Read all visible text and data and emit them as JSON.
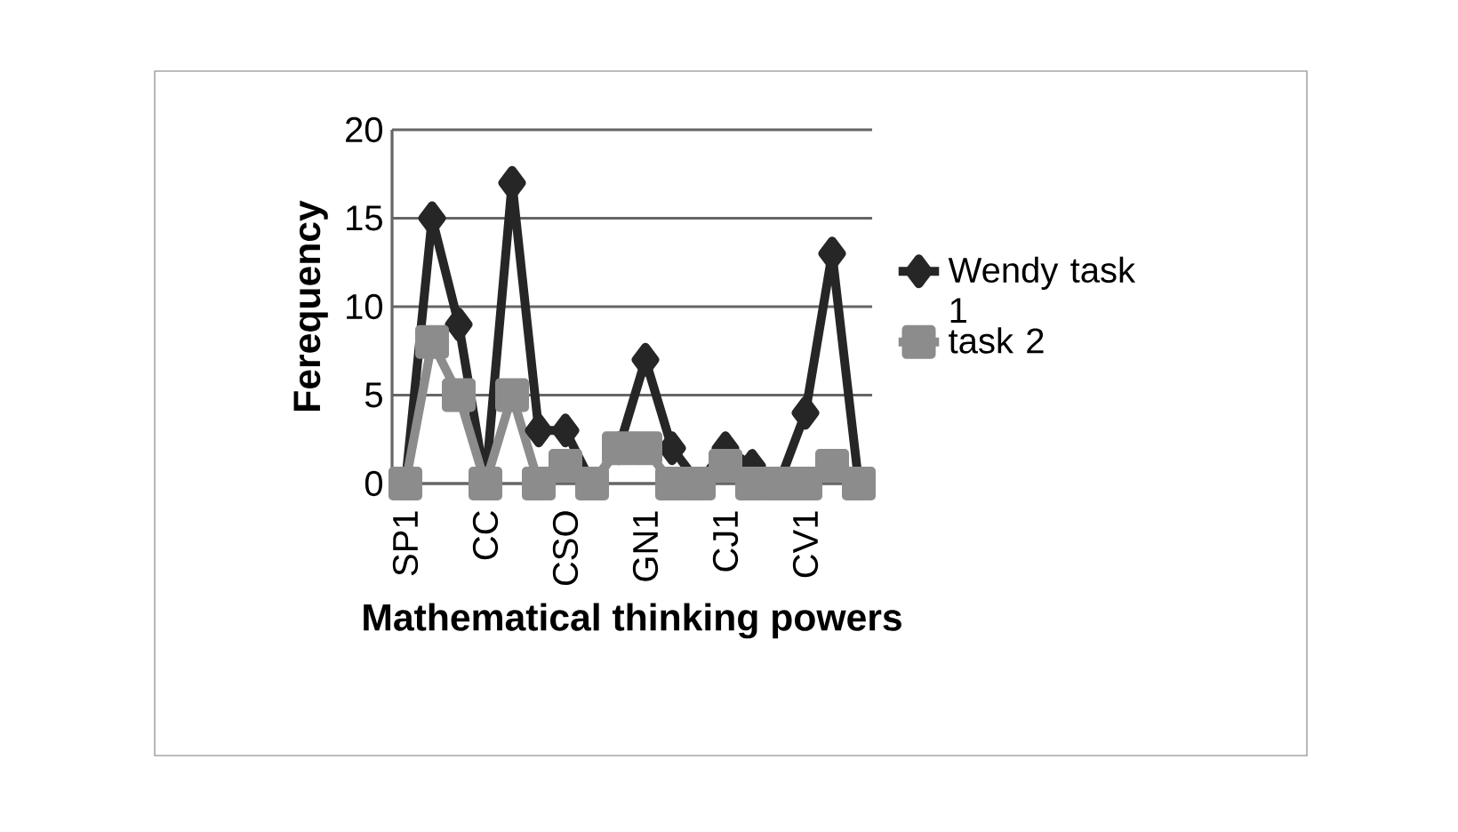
{
  "chart_data": {
    "type": "line",
    "xlabel": "Mathematical thinking powers",
    "ylabel": "Ferequency",
    "categories": [
      "SP1",
      null,
      null,
      "CC",
      null,
      null,
      "CSO",
      null,
      null,
      "GN1",
      null,
      null,
      "CJ1",
      null,
      null,
      "CV1",
      null,
      null
    ],
    "series": [
      {
        "name": "Wendy task 1",
        "color": "#262626",
        "marker": "diamond",
        "values": [
          0,
          15,
          9,
          0,
          17,
          3,
          3,
          0,
          2,
          7,
          2,
          0,
          2,
          1,
          0,
          4,
          13,
          0
        ]
      },
      {
        "name": "task 2",
        "color": "#8c8c8c",
        "marker": "square",
        "values": [
          0,
          8,
          5,
          0,
          5,
          0,
          1,
          0,
          2,
          2,
          0,
          0,
          1,
          0,
          0,
          0,
          1,
          0
        ]
      }
    ],
    "ylim": [
      0,
      20
    ],
    "yticks": [
      0,
      5,
      10,
      15,
      20
    ],
    "grid": "y",
    "legend": "right",
    "line_style": "solid"
  }
}
